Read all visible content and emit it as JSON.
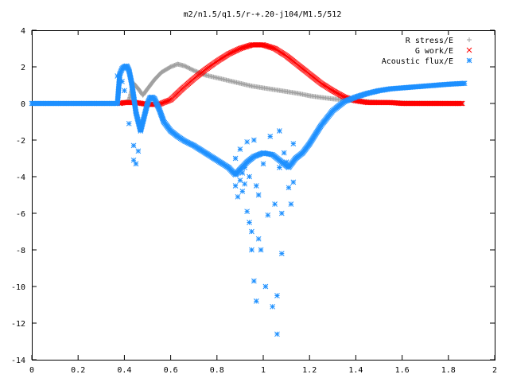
{
  "chart_data": {
    "type": "scatter",
    "title": "m2/n1.5/q1.5/r-+.20-j104/M1.5/512",
    "xlabel": "",
    "ylabel": "",
    "xlim": [
      0,
      2
    ],
    "ylim": [
      -14,
      4
    ],
    "x_ticks": [
      0,
      0.2,
      0.4,
      0.6,
      0.8,
      1,
      1.2,
      1.4,
      1.6,
      1.8,
      2
    ],
    "x_tick_labels": [
      "0",
      "0.2",
      "0.4",
      "0.6",
      "0.8",
      "1",
      "1.2",
      "1.4",
      "1.6",
      "1.8",
      "2"
    ],
    "y_ticks": [
      4,
      2,
      0,
      -2,
      -4,
      -6,
      -8,
      -10,
      -12,
      -14
    ],
    "y_tick_labels": [
      "4",
      "2",
      "0",
      "-2",
      "-4",
      "-6",
      "-8",
      "-10",
      "-12",
      "-14"
    ],
    "grid": false,
    "legend_position": "top-right",
    "series": [
      {
        "name": "R stress/E",
        "marker": "+",
        "color": "#a0a0a0",
        "x": [
          0.38,
          0.4,
          0.42,
          0.44,
          0.46,
          0.48,
          0.5,
          0.53,
          0.56,
          0.6,
          0.63,
          0.66,
          0.7,
          0.75,
          0.8,
          0.85,
          0.9,
          0.95,
          1.0,
          1.05,
          1.1,
          1.15,
          1.2,
          1.25,
          1.3,
          1.35,
          1.4,
          1.45,
          1.5,
          1.55,
          1.6,
          1.65,
          1.7,
          1.75,
          1.8,
          1.86
        ],
        "y": [
          0.0,
          0.05,
          0.15,
          1.1,
          0.8,
          0.45,
          0.8,
          1.3,
          1.7,
          2.0,
          2.15,
          2.05,
          1.8,
          1.55,
          1.4,
          1.25,
          1.1,
          0.95,
          0.85,
          0.75,
          0.65,
          0.55,
          0.42,
          0.33,
          0.25,
          0.2,
          0.15,
          0.1,
          0.07,
          0.05,
          0.03,
          0.02,
          0.01,
          0.01,
          0.0,
          0.0
        ]
      },
      {
        "name": "G work/E",
        "marker": "x",
        "color": "#ff0000",
        "x": [
          0.38,
          0.4,
          0.45,
          0.5,
          0.55,
          0.6,
          0.65,
          0.7,
          0.75,
          0.8,
          0.85,
          0.9,
          0.95,
          1.0,
          1.05,
          1.1,
          1.15,
          1.2,
          1.25,
          1.3,
          1.35,
          1.4,
          1.45,
          1.5,
          1.55,
          1.6,
          1.65,
          1.7,
          1.75,
          1.8,
          1.86
        ],
        "y": [
          0.0,
          0.05,
          0.05,
          -0.05,
          -0.05,
          0.2,
          0.8,
          1.35,
          1.85,
          2.3,
          2.7,
          3.0,
          3.2,
          3.2,
          3.0,
          2.6,
          2.1,
          1.6,
          1.1,
          0.7,
          0.35,
          0.15,
          0.05,
          0.05,
          0.05,
          0.0,
          0.0,
          0.0,
          0.0,
          0.0,
          0.0
        ]
      },
      {
        "name": "Acoustic flux/E",
        "marker": "*",
        "color": "#1e90ff",
        "x": [
          0.0,
          0.1,
          0.2,
          0.3,
          0.37,
          0.38,
          0.39,
          0.4,
          0.41,
          0.42,
          0.43,
          0.44,
          0.45,
          0.47,
          0.49,
          0.5,
          0.51,
          0.52,
          0.53,
          0.55,
          0.57,
          0.6,
          0.63,
          0.66,
          0.7,
          0.75,
          0.8,
          0.85,
          0.88,
          0.9,
          0.93,
          0.96,
          1.0,
          1.04,
          1.08,
          1.11,
          1.14,
          1.17,
          1.2,
          1.25,
          1.3,
          1.35,
          1.4,
          1.45,
          1.5,
          1.55,
          1.6,
          1.65,
          1.7,
          1.75,
          1.8,
          1.87
        ],
        "y": [
          0.0,
          0.0,
          0.0,
          0.0,
          0.0,
          1.6,
          1.9,
          2.0,
          2.05,
          1.8,
          1.2,
          0.4,
          -0.5,
          -1.5,
          -0.5,
          0.0,
          0.3,
          0.35,
          0.25,
          -0.3,
          -1.0,
          -1.5,
          -1.8,
          -2.05,
          -2.3,
          -2.7,
          -3.1,
          -3.5,
          -3.9,
          -3.6,
          -3.2,
          -2.9,
          -2.7,
          -2.8,
          -3.2,
          -3.5,
          -3.0,
          -2.7,
          -2.2,
          -1.2,
          -0.4,
          0.1,
          0.35,
          0.55,
          0.7,
          0.8,
          0.85,
          0.9,
          0.95,
          1.0,
          1.05,
          1.1
        ]
      },
      {
        "name": "",
        "marker": "*",
        "color": "#1e90ff",
        "x": [
          0.37,
          0.39,
          0.4,
          0.42,
          0.44,
          0.44,
          0.45,
          0.46,
          0.47,
          0.88,
          0.88,
          0.89,
          0.9,
          0.9,
          0.91,
          0.91,
          0.92,
          0.92,
          0.93,
          0.93,
          0.94,
          0.94,
          0.95,
          0.95,
          0.96,
          0.96,
          0.97,
          0.97,
          0.98,
          0.98,
          0.99,
          1.0,
          1.01,
          1.02,
          1.03,
          1.04,
          1.05,
          1.06,
          1.06,
          1.07,
          1.07,
          1.08,
          1.08,
          1.09,
          1.1,
          1.11,
          1.12,
          1.13,
          1.13
        ],
        "y": [
          1.5,
          1.2,
          0.7,
          -1.1,
          -2.3,
          -3.1,
          -3.3,
          -2.6,
          -1.4,
          -4.5,
          -3.0,
          -5.1,
          -4.2,
          -2.5,
          -4.8,
          -3.8,
          -4.4,
          -3.5,
          -5.9,
          -2.1,
          -4.0,
          -6.5,
          -8.0,
          -7.0,
          -9.7,
          -2.0,
          -10.8,
          -4.5,
          -5.0,
          -7.4,
          -8.0,
          -3.3,
          -10.0,
          -6.1,
          -1.8,
          -11.1,
          -5.5,
          -12.6,
          -10.5,
          -3.5,
          -1.5,
          -8.2,
          -6.0,
          -2.7,
          -3.2,
          -4.6,
          -5.5,
          -2.2,
          -4.3
        ]
      }
    ]
  }
}
